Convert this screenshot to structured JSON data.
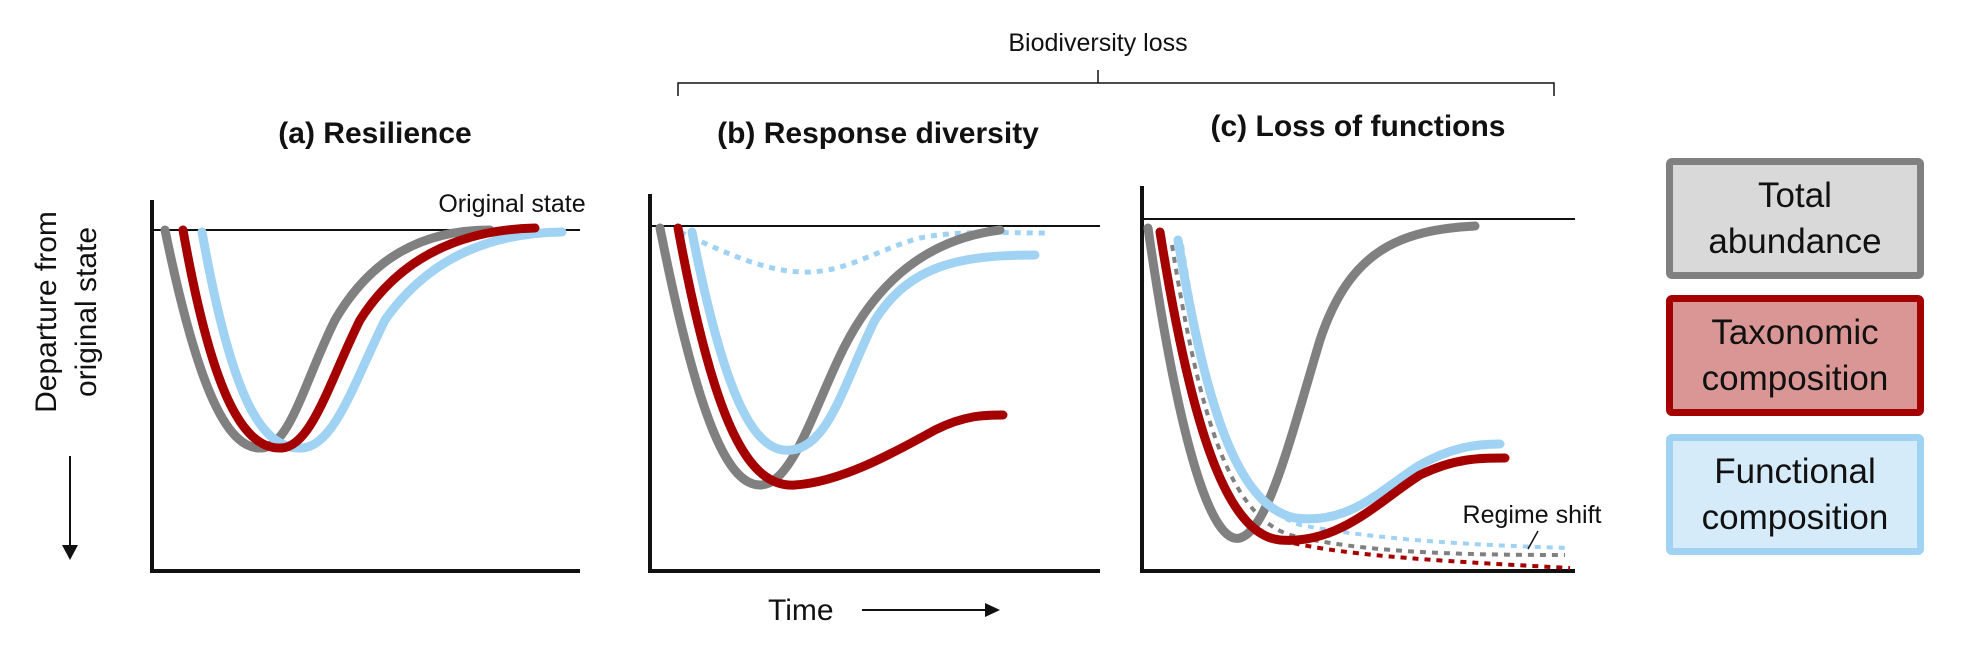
{
  "header": {
    "bracket_label": "Biodiversity loss"
  },
  "panels": [
    {
      "title": "(a) Resilience",
      "annotation": "Original state"
    },
    {
      "title": "(b) Response diversity"
    },
    {
      "title": "(c) Loss of functions",
      "annotation": "Regime shift"
    }
  ],
  "axes": {
    "y_title_line1": "Departure from",
    "y_title_line2": "original state",
    "x_title": "Time"
  },
  "legend": {
    "total": {
      "line1": "Total",
      "line2": "abundance"
    },
    "taxonomic": {
      "line1": "Taxonomic",
      "line2": "composition"
    },
    "functional": {
      "line1": "Functional",
      "line2": "composition"
    }
  },
  "colors": {
    "total_abundance": "#808080",
    "taxonomic_composition": "#a50000",
    "functional_composition": "#9fd2f3",
    "axis": "#111111"
  }
}
